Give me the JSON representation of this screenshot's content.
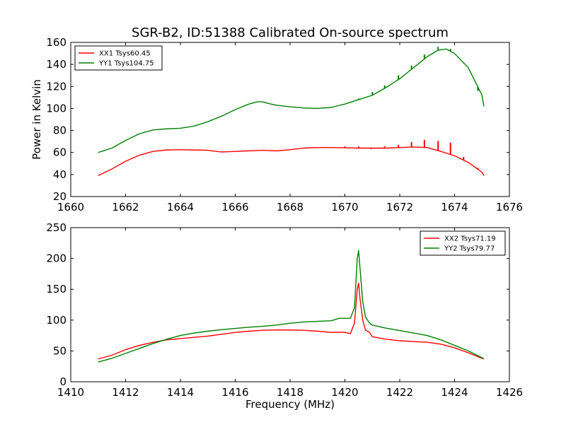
{
  "chart_data": [
    {
      "type": "line",
      "title": "SGR-B2, ID:51388 Calibrated On-source spectrum",
      "xlabel": "",
      "ylabel": "Power in Kelvin",
      "xlim": [
        1660,
        1676
      ],
      "ylim": [
        20,
        160
      ],
      "x_ticks": [
        1660,
        1662,
        1664,
        1666,
        1668,
        1670,
        1672,
        1674,
        1676
      ],
      "y_ticks": [
        20,
        40,
        60,
        80,
        100,
        120,
        140,
        160
      ],
      "legend_position": "top-left",
      "series": [
        {
          "name": "XX1 Tsys60.45",
          "color": "#ff0000",
          "points": [
            [
              1661.0,
              39
            ],
            [
              1661.5,
              45
            ],
            [
              1662.0,
              52
            ],
            [
              1662.5,
              57.5
            ],
            [
              1663.0,
              61
            ],
            [
              1663.5,
              62.3
            ],
            [
              1664.0,
              62.5
            ],
            [
              1664.5,
              62.3
            ],
            [
              1665.0,
              62
            ],
            [
              1665.3,
              61
            ],
            [
              1665.5,
              60.5
            ],
            [
              1666.0,
              61
            ],
            [
              1666.5,
              61.5
            ],
            [
              1667.0,
              62
            ],
            [
              1667.5,
              61.5
            ],
            [
              1668.0,
              62.5
            ],
            [
              1668.5,
              64
            ],
            [
              1669.0,
              64.5
            ],
            [
              1669.5,
              64.5
            ],
            [
              1670.0,
              64.3
            ],
            [
              1670.5,
              64
            ],
            [
              1671.0,
              64
            ],
            [
              1671.5,
              64
            ],
            [
              1672.0,
              64.5
            ],
            [
              1672.5,
              65
            ],
            [
              1673.0,
              64.5
            ],
            [
              1673.5,
              61
            ],
            [
              1674.0,
              57
            ],
            [
              1674.5,
              51
            ],
            [
              1675.0,
              42
            ],
            [
              1675.07,
              39
            ]
          ],
          "spikes": [
            [
              1670.0,
              65.5
            ],
            [
              1670.5,
              65.5
            ],
            [
              1670.95,
              63
            ],
            [
              1671.45,
              65.5
            ],
            [
              1671.95,
              67
            ],
            [
              1672.43,
              69.5
            ],
            [
              1672.9,
              71.5
            ],
            [
              1673.4,
              70.5
            ],
            [
              1673.85,
              69
            ],
            [
              1674.33,
              56
            ],
            [
              1674.85,
              46
            ]
          ]
        },
        {
          "name": "YY1 Tsys104.75",
          "color": "#008000",
          "points": [
            [
              1661.0,
              60
            ],
            [
              1661.5,
              64
            ],
            [
              1662.0,
              71
            ],
            [
              1662.5,
              77
            ],
            [
              1663.0,
              80.5
            ],
            [
              1663.5,
              81.5
            ],
            [
              1664.0,
              82
            ],
            [
              1664.5,
              84
            ],
            [
              1665.0,
              88
            ],
            [
              1665.5,
              93
            ],
            [
              1666.0,
              99
            ],
            [
              1666.5,
              104
            ],
            [
              1666.8,
              106
            ],
            [
              1667.0,
              106
            ],
            [
              1667.3,
              104
            ],
            [
              1667.5,
              103
            ],
            [
              1668.0,
              101.5
            ],
            [
              1668.5,
              100.5
            ],
            [
              1669.0,
              100
            ],
            [
              1669.5,
              101
            ],
            [
              1670.0,
              104
            ],
            [
              1670.5,
              108
            ],
            [
              1671.0,
              112
            ],
            [
              1671.5,
              119
            ],
            [
              1672.0,
              127
            ],
            [
              1672.5,
              137
            ],
            [
              1673.0,
              147
            ],
            [
              1673.4,
              153
            ],
            [
              1673.7,
              154
            ],
            [
              1674.0,
              150
            ],
            [
              1674.5,
              137
            ],
            [
              1675.0,
              112
            ],
            [
              1675.07,
              102
            ]
          ],
          "spikes": [
            [
              1665.15,
              90
            ],
            [
              1670.5,
              109
            ],
            [
              1671.0,
              115
            ],
            [
              1671.45,
              121
            ],
            [
              1671.95,
              130
            ],
            [
              1672.43,
              139
            ],
            [
              1672.9,
              149
            ],
            [
              1673.4,
              156
            ],
            [
              1673.85,
              154
            ],
            [
              1674.33,
              141
            ],
            [
              1674.85,
              116
            ]
          ]
        }
      ]
    },
    {
      "type": "line",
      "title": "",
      "xlabel": "Frequency (MHz)",
      "ylabel": "",
      "xlim": [
        1410,
        1426
      ],
      "ylim": [
        0,
        250
      ],
      "x_ticks": [
        1410,
        1412,
        1414,
        1416,
        1418,
        1420,
        1422,
        1424,
        1426
      ],
      "y_ticks": [
        0,
        50,
        100,
        150,
        200,
        250
      ],
      "legend_position": "top-right",
      "series": [
        {
          "name": "XX2 Tsys71.19",
          "color": "#ff0000",
          "points": [
            [
              1411.0,
              37
            ],
            [
              1411.5,
              43
            ],
            [
              1412.0,
              52
            ],
            [
              1412.5,
              59
            ],
            [
              1413.0,
              64
            ],
            [
              1413.5,
              68
            ],
            [
              1414.0,
              70
            ],
            [
              1414.5,
              72
            ],
            [
              1415.0,
              74
            ],
            [
              1415.5,
              77
            ],
            [
              1416.0,
              80
            ],
            [
              1416.5,
              82
            ],
            [
              1417.0,
              83.5
            ],
            [
              1417.5,
              84
            ],
            [
              1418.0,
              84
            ],
            [
              1418.5,
              83.5
            ],
            [
              1419.0,
              82
            ],
            [
              1419.5,
              80
            ],
            [
              1419.8,
              80.5
            ],
            [
              1420.0,
              80
            ],
            [
              1420.2,
              78
            ],
            [
              1420.35,
              95
            ],
            [
              1420.45,
              150
            ],
            [
              1420.5,
              160
            ],
            [
              1420.55,
              135
            ],
            [
              1420.65,
              100
            ],
            [
              1420.75,
              84
            ],
            [
              1420.9,
              80
            ],
            [
              1421.0,
              73
            ],
            [
              1421.5,
              69
            ],
            [
              1422.0,
              66.5
            ],
            [
              1423.0,
              64
            ],
            [
              1423.5,
              61
            ],
            [
              1424.0,
              55
            ],
            [
              1424.5,
              47
            ],
            [
              1425.0,
              38
            ],
            [
              1425.07,
              37
            ]
          ]
        },
        {
          "name": "YY2 Tsys79.77",
          "color": "#008000",
          "points": [
            [
              1411.0,
              32
            ],
            [
              1411.5,
              38
            ],
            [
              1412.0,
              46
            ],
            [
              1412.5,
              54
            ],
            [
              1413.0,
              62
            ],
            [
              1413.5,
              69
            ],
            [
              1414.0,
              75
            ],
            [
              1414.5,
              79
            ],
            [
              1415.0,
              82
            ],
            [
              1415.5,
              84.5
            ],
            [
              1416.0,
              86.5
            ],
            [
              1416.5,
              88.5
            ],
            [
              1417.0,
              90
            ],
            [
              1417.5,
              92
            ],
            [
              1418.0,
              95
            ],
            [
              1418.5,
              97
            ],
            [
              1419.0,
              98
            ],
            [
              1419.5,
              99
            ],
            [
              1419.8,
              103
            ],
            [
              1420.0,
              103
            ],
            [
              1420.2,
              103
            ],
            [
              1420.35,
              120
            ],
            [
              1420.45,
              200
            ],
            [
              1420.5,
              213
            ],
            [
              1420.55,
              185
            ],
            [
              1420.65,
              130
            ],
            [
              1420.75,
              105
            ],
            [
              1420.9,
              95
            ],
            [
              1421.0,
              92
            ],
            [
              1421.5,
              87
            ],
            [
              1422.0,
              83
            ],
            [
              1422.5,
              79
            ],
            [
              1423.0,
              75
            ],
            [
              1423.5,
              68
            ],
            [
              1424.0,
              59
            ],
            [
              1424.5,
              50
            ],
            [
              1425.0,
              39
            ],
            [
              1425.07,
              37
            ]
          ]
        }
      ]
    }
  ]
}
